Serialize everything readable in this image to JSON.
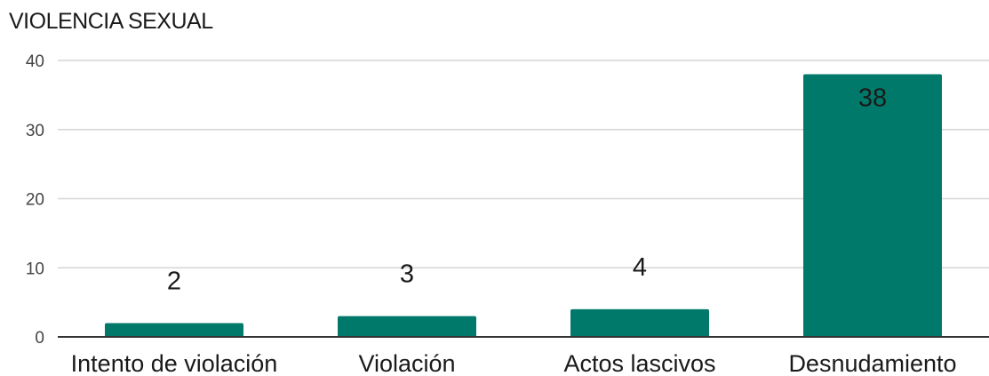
{
  "chart_data": {
    "type": "bar",
    "title": "VIOLENCIA SEXUAL",
    "categories": [
      "Intento de violación",
      "Violación",
      "Actos lascivos",
      "Desnudamiento"
    ],
    "values": [
      2,
      3,
      4,
      38
    ],
    "data_labels": [
      "2",
      "3",
      "4",
      "38"
    ],
    "ylim": [
      0,
      40
    ],
    "yticks": [
      "0",
      "10",
      "20",
      "30",
      "40"
    ],
    "ytick_values": [
      0,
      10,
      20,
      30,
      40
    ],
    "grid": true,
    "legend": "none",
    "colors": {
      "bar": "#00796b"
    }
  }
}
